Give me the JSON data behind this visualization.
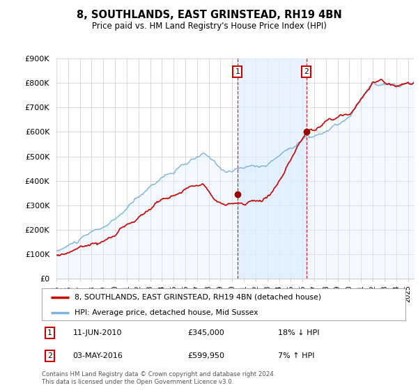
{
  "title": "8, SOUTHLANDS, EAST GRINSTEAD, RH19 4BN",
  "subtitle": "Price paid vs. HM Land Registry's House Price Index (HPI)",
  "ylim": [
    0,
    900000
  ],
  "yticks": [
    0,
    100000,
    200000,
    300000,
    400000,
    500000,
    600000,
    700000,
    800000,
    900000
  ],
  "ytick_labels": [
    "£0",
    "£100K",
    "£200K",
    "£300K",
    "£400K",
    "£500K",
    "£600K",
    "£700K",
    "£800K",
    "£900K"
  ],
  "xlim_start": 1995.0,
  "xlim_end": 2025.5,
  "property_color": "#cc0000",
  "hpi_color": "#7ab3d9",
  "hpi_fill_color": "#ddeeff",
  "shade_color": "#ddeeff",
  "background_color": "#ffffff",
  "sale1_price": 345000,
  "sale1_x": 2010.44,
  "sale1_date": "11-JUN-2010",
  "sale1_info": "£345,000",
  "sale1_hpi": "18% ↓ HPI",
  "sale2_price": 599950,
  "sale2_x": 2016.34,
  "sale2_date": "03-MAY-2016",
  "sale2_info": "£599,950",
  "sale2_hpi": "7% ↑ HPI",
  "legend_line1": "8, SOUTHLANDS, EAST GRINSTEAD, RH19 4BN (detached house)",
  "legend_line2": "HPI: Average price, detached house, Mid Sussex",
  "footer": "Contains HM Land Registry data © Crown copyright and database right 2024.\nThis data is licensed under the Open Government Licence v3.0."
}
